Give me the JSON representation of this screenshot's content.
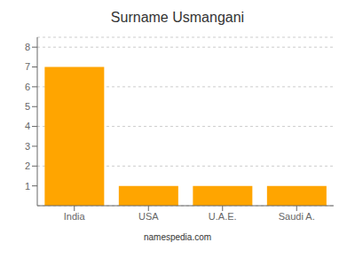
{
  "chart_data": {
    "type": "bar",
    "title": "Surname Usmangani",
    "categories": [
      "India",
      "USA",
      "U.A.E.",
      "Saudi A."
    ],
    "values": [
      7,
      1,
      1,
      1
    ],
    "color": "#FFA500",
    "ylim": [
      0,
      8.5
    ],
    "yticks": [
      1,
      2,
      3,
      4,
      5,
      6,
      7,
      8
    ],
    "grid": true,
    "annotations": [
      "namespedia.com"
    ]
  }
}
